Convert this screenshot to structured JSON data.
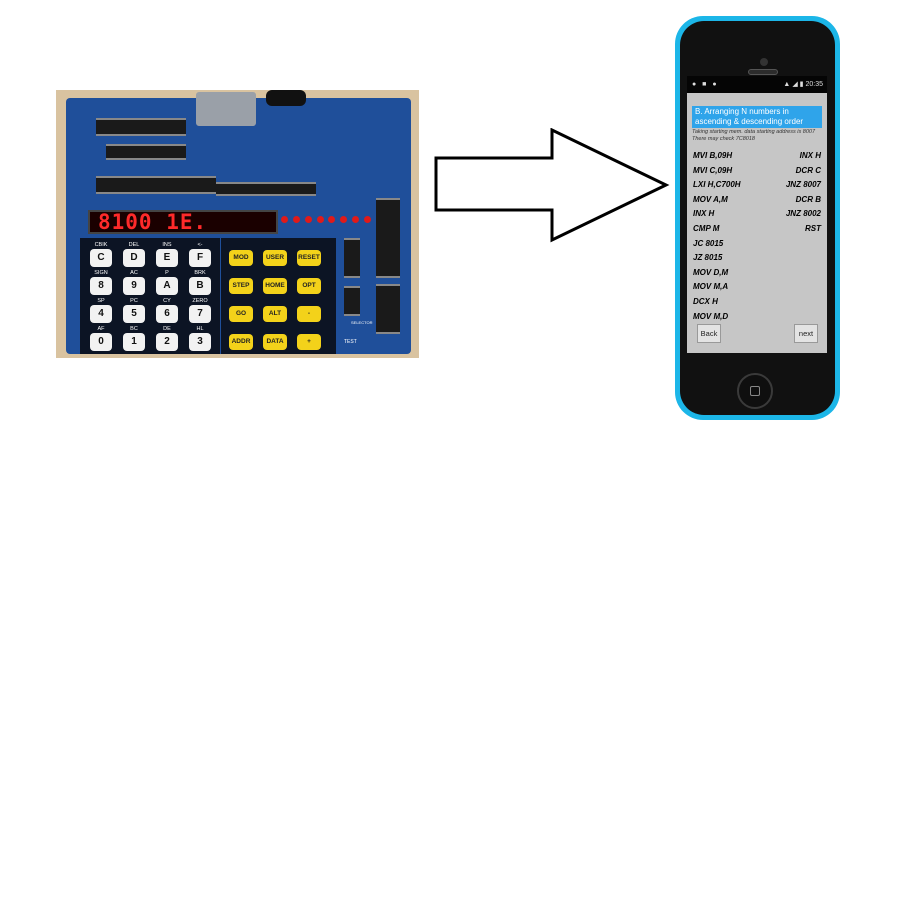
{
  "kit": {
    "display_text": "8100 1E.",
    "hex_keys": [
      {
        "key": "C",
        "label": "CBIK"
      },
      {
        "key": "D",
        "label": "DEL"
      },
      {
        "key": "E",
        "label": "INS"
      },
      {
        "key": "F",
        "label": "<-"
      },
      {
        "key": "8",
        "label": "SIGN"
      },
      {
        "key": "9",
        "label": "AC"
      },
      {
        "key": "A",
        "label": "P"
      },
      {
        "key": "B",
        "label": "BRK"
      },
      {
        "key": "4",
        "label": "SP"
      },
      {
        "key": "5",
        "label": "PC"
      },
      {
        "key": "6",
        "label": "CY"
      },
      {
        "key": "7",
        "label": "ZERO"
      },
      {
        "key": "0",
        "label": "AF"
      },
      {
        "key": "1",
        "label": "BC"
      },
      {
        "key": "2",
        "label": "DE"
      },
      {
        "key": "3",
        "label": "HL"
      }
    ],
    "func_keys": [
      "MOD",
      "USER",
      "RESET",
      "STEP",
      "HOME",
      "OPT",
      "GO",
      "ALT",
      "-",
      "ADDR",
      "DATA",
      "+"
    ],
    "selector_label": "SELECTOR",
    "test_label": "TEST"
  },
  "phone": {
    "status_time": "20:35",
    "title": "B. Arranging N numbers in ascending & descending order",
    "subtitle": "Taking starting mem. data starting address is 8007 There may check 7C8018",
    "code_rows": [
      {
        "left": "MVI B,09H",
        "right": "INX H"
      },
      {
        "left": "MVI C,09H",
        "right": "DCR C"
      },
      {
        "left": "LXI H,C700H",
        "right": "JNZ 8007"
      },
      {
        "left": "MOV A,M",
        "right": "DCR B"
      },
      {
        "left": "INX H",
        "right": "JNZ 8002"
      },
      {
        "left": "CMP M",
        "right": "RST"
      },
      {
        "left": "JC 8015",
        "right": ""
      },
      {
        "left": "JZ 8015",
        "right": ""
      },
      {
        "left": "MOV D,M",
        "right": ""
      },
      {
        "left": "MOV M,A",
        "right": ""
      },
      {
        "left": "DCX H",
        "right": ""
      },
      {
        "left": "MOV M,D",
        "right": ""
      }
    ],
    "back_label": "Back",
    "next_label": "next"
  },
  "colors": {
    "phone_body": "#1cb6e8",
    "banner": "#2fa4ea",
    "board": "#1f4f9a",
    "func_key": "#f3d21a",
    "display_led": "#ff2a2a"
  }
}
